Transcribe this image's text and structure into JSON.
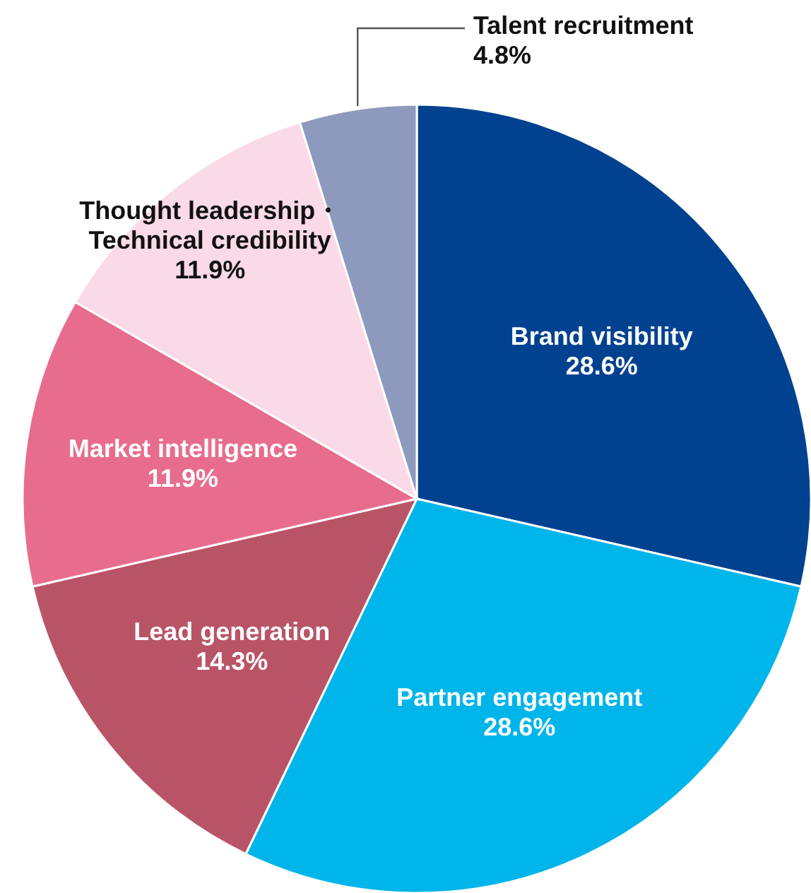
{
  "chart_data": {
    "type": "pie",
    "categories": [
      "Brand visibility",
      "Partner engagement",
      "Lead generation",
      "Market intelligence",
      "Thought leadership・\nTechnical credibility",
      "Talent recruitment"
    ],
    "values": [
      28.6,
      28.6,
      14.3,
      11.9,
      11.9,
      4.8
    ],
    "colors": [
      "#00428f",
      "#00b5ea",
      "#b95467",
      "#e86c8d",
      "#fadae7",
      "#8e9abd"
    ],
    "value_labels": [
      "28.6%",
      "28.6%",
      "14.3%",
      "11.9%",
      "11.9%",
      "4.8%"
    ]
  }
}
